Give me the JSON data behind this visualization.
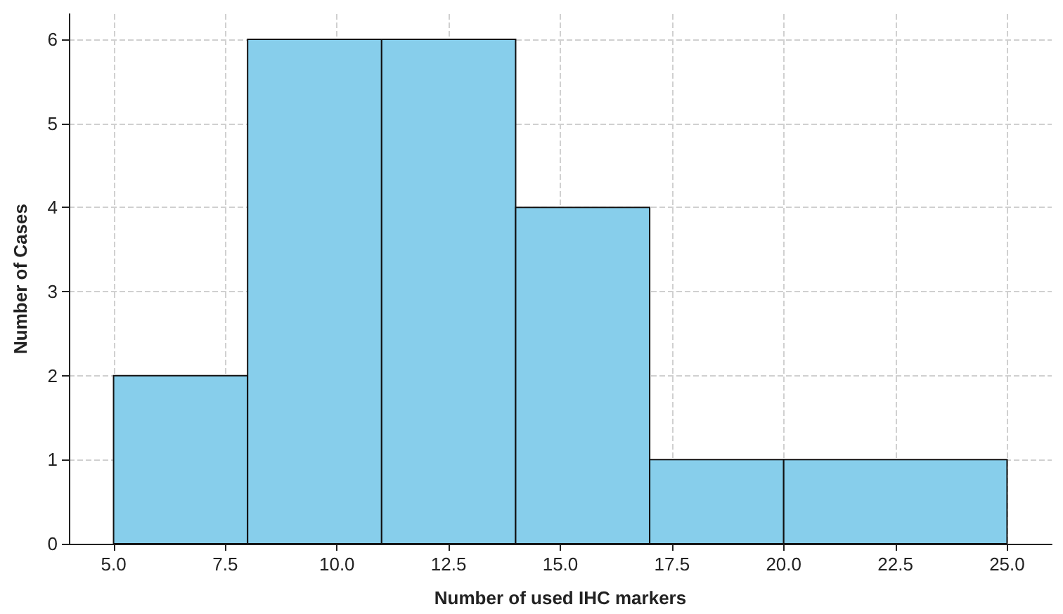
{
  "chart_data": {
    "type": "histogram",
    "xlabel": "Number of used IHC markers",
    "ylabel": "Number of Cases",
    "bins": [
      5,
      8,
      11,
      14,
      17,
      20,
      25
    ],
    "values": [
      2,
      6,
      6,
      4,
      1,
      1
    ],
    "color": "#87ceeb",
    "xlim": [
      4,
      26
    ],
    "ylim": [
      0,
      6.3
    ],
    "xticks": [
      {
        "value": 5,
        "label": "5.0"
      },
      {
        "value": 7.5,
        "label": "7.5"
      },
      {
        "value": 10,
        "label": "10.0"
      },
      {
        "value": 12.5,
        "label": "12.5"
      },
      {
        "value": 15,
        "label": "15.0"
      },
      {
        "value": 17.5,
        "label": "17.5"
      },
      {
        "value": 20,
        "label": "20.0"
      },
      {
        "value": 22.5,
        "label": "22.5"
      },
      {
        "value": 25,
        "label": "25.0"
      }
    ],
    "yticks": [
      0,
      1,
      2,
      3,
      4,
      5,
      6
    ],
    "grid": true
  }
}
